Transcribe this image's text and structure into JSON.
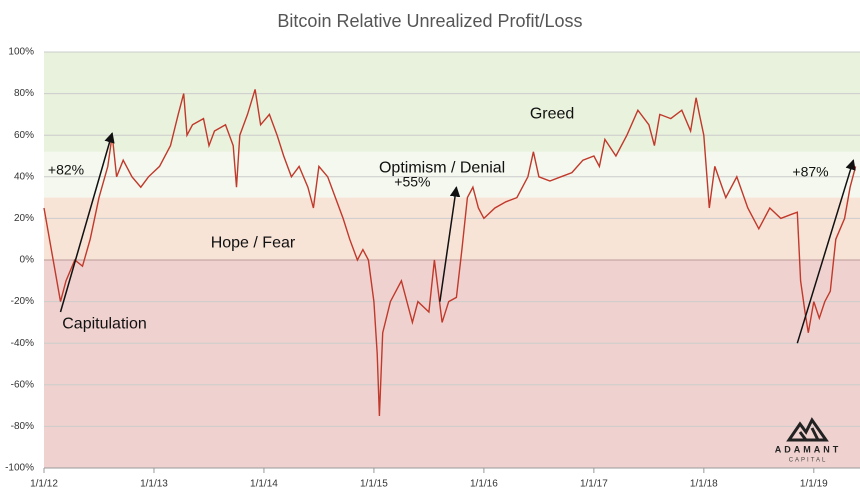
{
  "chart_data": {
    "type": "line",
    "title": "Bitcoin Relative Unrealized Profit/Loss",
    "xlim": [
      2012,
      2019.42
    ],
    "xticks": [
      {
        "value": 2012,
        "label": "1/1/12"
      },
      {
        "value": 2013,
        "label": "1/1/13"
      },
      {
        "value": 2014,
        "label": "1/1/14"
      },
      {
        "value": 2015,
        "label": "1/1/15"
      },
      {
        "value": 2016,
        "label": "1/1/16"
      },
      {
        "value": 2017,
        "label": "1/1/17"
      },
      {
        "value": 2018,
        "label": "1/1/18"
      },
      {
        "value": 2019,
        "label": "1/1/19"
      }
    ],
    "ylim": [
      -100,
      100
    ],
    "yticks": [
      {
        "value": -100,
        "label": "-100%"
      },
      {
        "value": -80,
        "label": "-80%"
      },
      {
        "value": -60,
        "label": "-60%"
      },
      {
        "value": -40,
        "label": "-40%"
      },
      {
        "value": -20,
        "label": "-20%"
      },
      {
        "value": 0,
        "label": "0%"
      },
      {
        "value": 20,
        "label": "20%"
      },
      {
        "value": 40,
        "label": "40%"
      },
      {
        "value": 60,
        "label": "60%"
      },
      {
        "value": 80,
        "label": "80%"
      },
      {
        "value": 100,
        "label": "100%"
      }
    ],
    "grid": true,
    "zones": [
      {
        "from": 52,
        "to": 100,
        "color": "#e9f2dd"
      },
      {
        "from": 30,
        "to": 52,
        "color": "#f4f8ee"
      },
      {
        "from": 0,
        "to": 30,
        "color": "#f8e3d7"
      },
      {
        "from": -100,
        "to": 0,
        "color": "#efd2cf"
      }
    ],
    "x": [
      2012.0,
      2012.05,
      2012.1,
      2012.15,
      2012.2,
      2012.28,
      2012.35,
      2012.42,
      2012.5,
      2012.58,
      2012.62,
      2012.66,
      2012.72,
      2012.8,
      2012.88,
      2012.95,
      2013.05,
      2013.15,
      2013.22,
      2013.27,
      2013.3,
      2013.35,
      2013.45,
      2013.5,
      2013.55,
      2013.65,
      2013.72,
      2013.75,
      2013.78,
      2013.85,
      2013.92,
      2013.97,
      2014.05,
      2014.12,
      2014.18,
      2014.25,
      2014.32,
      2014.4,
      2014.45,
      2014.5,
      2014.58,
      2014.65,
      2014.72,
      2014.78,
      2014.85,
      2014.9,
      2014.95,
      2015.0,
      2015.03,
      2015.05,
      2015.08,
      2015.15,
      2015.25,
      2015.35,
      2015.4,
      2015.5,
      2015.55,
      2015.62,
      2015.68,
      2015.75,
      2015.8,
      2015.85,
      2015.9,
      2015.95,
      2016.0,
      2016.1,
      2016.2,
      2016.3,
      2016.4,
      2016.45,
      2016.5,
      2016.6,
      2016.7,
      2016.8,
      2016.9,
      2017.0,
      2017.05,
      2017.1,
      2017.2,
      2017.3,
      2017.4,
      2017.5,
      2017.55,
      2017.6,
      2017.7,
      2017.8,
      2017.88,
      2017.93,
      2017.96,
      2018.0,
      2018.05,
      2018.1,
      2018.2,
      2018.3,
      2018.4,
      2018.5,
      2018.6,
      2018.7,
      2018.8,
      2018.85,
      2018.88,
      2018.92,
      2018.95,
      2019.0,
      2019.05,
      2019.1,
      2019.15,
      2019.2,
      2019.28,
      2019.33,
      2019.38
    ],
    "series": [
      {
        "color": "#c0392b",
        "values": [
          25,
          10,
          -5,
          -20,
          -10,
          0,
          -3,
          10,
          30,
          45,
          60,
          40,
          48,
          40,
          35,
          40,
          45,
          55,
          70,
          80,
          60,
          65,
          68,
          55,
          62,
          65,
          55,
          35,
          60,
          70,
          82,
          65,
          70,
          60,
          50,
          40,
          45,
          35,
          25,
          45,
          40,
          30,
          20,
          10,
          0,
          5,
          0,
          -20,
          -45,
          -75,
          -35,
          -20,
          -10,
          -30,
          -20,
          -25,
          0,
          -30,
          -20,
          -18,
          5,
          30,
          35,
          25,
          20,
          25,
          28,
          30,
          40,
          52,
          40,
          38,
          40,
          42,
          48,
          50,
          45,
          58,
          50,
          60,
          72,
          65,
          55,
          70,
          68,
          72,
          62,
          78,
          70,
          60,
          25,
          45,
          30,
          40,
          25,
          15,
          25,
          20,
          22,
          23,
          -10,
          -25,
          -35,
          -20,
          -28,
          -20,
          -15,
          10,
          20,
          35,
          45
        ]
      }
    ],
    "annotations": [
      {
        "text": "Greed",
        "x": 2016.62,
        "y": 70
      },
      {
        "text": "Optimism / Denial",
        "x": 2015.62,
        "y": 44
      },
      {
        "text": "Hope / Fear",
        "x": 2013.9,
        "y": 8
      },
      {
        "text": "Capitulation",
        "x": 2012.55,
        "y": -31
      },
      {
        "text": "+82%",
        "x": 2012.2,
        "y": 43,
        "arrow": [
          2012.15,
          -25,
          2012.62,
          61
        ]
      },
      {
        "text": "+55%",
        "x": 2015.35,
        "y": 37,
        "arrow": [
          2015.6,
          -20,
          2015.75,
          35
        ]
      },
      {
        "text": "+87%",
        "x": 2018.97,
        "y": 42,
        "arrow": [
          2018.85,
          -40,
          2019.36,
          48
        ]
      }
    ],
    "logo": {
      "name": "ADAMANT",
      "subtitle": "CAPITAL"
    }
  }
}
